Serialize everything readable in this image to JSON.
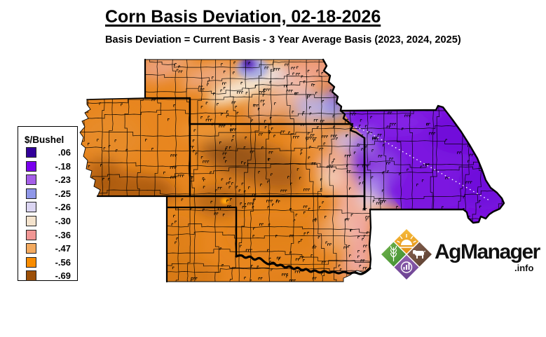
{
  "title": "Corn Basis Deviation, 02-18-2026",
  "subtitle": "Basis Deviation = Current Basis - 3 Year Average Basis (2023, 2024, 2025)",
  "legend": {
    "header": "$/Bushel",
    "items": [
      {
        "label": ".06",
        "color": "#32009a"
      },
      {
        "label": "-.18",
        "color": "#7a00ee"
      },
      {
        "label": "-.23",
        "color": "#a55fe8"
      },
      {
        "label": "-.25",
        "color": "#8f97e8"
      },
      {
        "label": "-.26",
        "color": "#dbd5f2"
      },
      {
        "label": "-.30",
        "color": "#f4e3cd"
      },
      {
        "label": "-.36",
        "color": "#f19694"
      },
      {
        "label": "-.47",
        "color": "#f3aa5f"
      },
      {
        "label": "-.56",
        "color": "#f98c00"
      },
      {
        "label": "-.69",
        "color": "#9c4f08"
      }
    ]
  },
  "map": {
    "type": "interpolated-basis-surface",
    "units": "$/Bushel"
  },
  "logo": {
    "brand": "AgManager",
    "suffix": ".info"
  }
}
